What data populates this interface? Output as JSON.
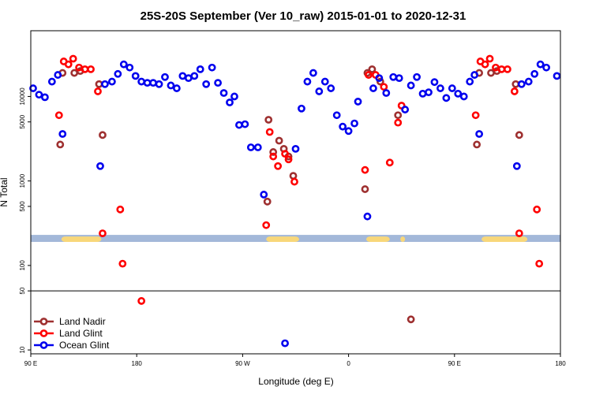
{
  "chart_data": {
    "type": "scatter",
    "title": "25S-20S September (Ver 10_raw)   2015-01-01 to 2020-12-31",
    "xlabel": "Longitude (deg E)",
    "ylabel": "N Total",
    "xlim": [
      90,
      540
    ],
    "ylim": [
      9,
      60000
    ],
    "yscale": "log",
    "grid": false,
    "legend_position": "bottom-left",
    "x_ticks": [
      {
        "value": 90,
        "label": "90 E"
      },
      {
        "value": 180,
        "label": "180"
      },
      {
        "value": 270,
        "label": "90 W"
      },
      {
        "value": 360,
        "label": "0"
      },
      {
        "value": 450,
        "label": "90 E"
      },
      {
        "value": 540,
        "label": "180"
      }
    ],
    "y_ticks": [
      {
        "value": 10,
        "label": "10"
      },
      {
        "value": 50,
        "label": "50"
      },
      {
        "value": 100,
        "label": "100"
      },
      {
        "value": 500,
        "label": "500"
      },
      {
        "value": 1000,
        "label": "1000"
      },
      {
        "value": 5000,
        "label": "5000"
      },
      {
        "value": 10000,
        "label": "10000"
      }
    ],
    "reference_line": 50,
    "map_strip": {
      "y_range": [
        190,
        230
      ],
      "land_spans": [
        [
          116,
          150
        ],
        [
          290,
          318
        ],
        [
          375,
          395
        ],
        [
          404,
          408
        ],
        [
          473,
          512
        ]
      ],
      "ocean_color": "#a3b8d9",
      "land_color": "#f8d77a"
    },
    "series": [
      {
        "name": "Land Nadir",
        "color": "#9e3030",
        "points": [
          {
            "x": 115,
            "y": 2700
          },
          {
            "x": 117,
            "y": 19000
          },
          {
            "x": 127,
            "y": 19000
          },
          {
            "x": 132,
            "y": 20000
          },
          {
            "x": 148,
            "y": 14000
          },
          {
            "x": 151,
            "y": 3500
          },
          {
            "x": 291,
            "y": 570
          },
          {
            "x": 292,
            "y": 5300
          },
          {
            "x": 296,
            "y": 2200
          },
          {
            "x": 301,
            "y": 3000
          },
          {
            "x": 305,
            "y": 2400
          },
          {
            "x": 309,
            "y": 1950
          },
          {
            "x": 313,
            "y": 1150
          },
          {
            "x": 374,
            "y": 800
          },
          {
            "x": 376,
            "y": 19000
          },
          {
            "x": 380,
            "y": 21000
          },
          {
            "x": 387,
            "y": 15000
          },
          {
            "x": 402,
            "y": 6000
          },
          {
            "x": 413,
            "y": 23
          },
          {
            "x": 469,
            "y": 2700
          },
          {
            "x": 471,
            "y": 19000
          },
          {
            "x": 481,
            "y": 19000
          },
          {
            "x": 486,
            "y": 20000
          },
          {
            "x": 502,
            "y": 14000
          },
          {
            "x": 505,
            "y": 3500
          }
        ]
      },
      {
        "name": "Land Glint",
        "color": "#ff0000",
        "points": [
          {
            "x": 114,
            "y": 6000
          },
          {
            "x": 118,
            "y": 26000
          },
          {
            "x": 122,
            "y": 24000
          },
          {
            "x": 126,
            "y": 28000
          },
          {
            "x": 131,
            "y": 22000
          },
          {
            "x": 136,
            "y": 21000
          },
          {
            "x": 141,
            "y": 21000
          },
          {
            "x": 147,
            "y": 11500
          },
          {
            "x": 151,
            "y": 240
          },
          {
            "x": 166,
            "y": 460
          },
          {
            "x": 168,
            "y": 105
          },
          {
            "x": 184,
            "y": 38
          },
          {
            "x": 290,
            "y": 300
          },
          {
            "x": 293,
            "y": 3800
          },
          {
            "x": 296,
            "y": 1950
          },
          {
            "x": 300,
            "y": 1500
          },
          {
            "x": 306,
            "y": 2100
          },
          {
            "x": 309,
            "y": 1800
          },
          {
            "x": 314,
            "y": 980
          },
          {
            "x": 374,
            "y": 1350
          },
          {
            "x": 377,
            "y": 18000
          },
          {
            "x": 383,
            "y": 18000
          },
          {
            "x": 390,
            "y": 13000
          },
          {
            "x": 395,
            "y": 1650
          },
          {
            "x": 402,
            "y": 4900
          },
          {
            "x": 405,
            "y": 7800
          },
          {
            "x": 468,
            "y": 6000
          },
          {
            "x": 472,
            "y": 26000
          },
          {
            "x": 476,
            "y": 24000
          },
          {
            "x": 480,
            "y": 28000
          },
          {
            "x": 485,
            "y": 22000
          },
          {
            "x": 490,
            "y": 21000
          },
          {
            "x": 495,
            "y": 21000
          },
          {
            "x": 501,
            "y": 11500
          },
          {
            "x": 505,
            "y": 240
          },
          {
            "x": 520,
            "y": 460
          },
          {
            "x": 522,
            "y": 105
          }
        ]
      },
      {
        "name": "Ocean Glint",
        "color": "#0000ee",
        "points": [
          {
            "x": 92,
            "y": 12500
          },
          {
            "x": 97,
            "y": 10500
          },
          {
            "x": 102,
            "y": 9800
          },
          {
            "x": 108,
            "y": 15000
          },
          {
            "x": 113,
            "y": 18000
          },
          {
            "x": 117,
            "y": 3600
          },
          {
            "x": 149,
            "y": 1500
          },
          {
            "x": 153,
            "y": 14000
          },
          {
            "x": 159,
            "y": 15000
          },
          {
            "x": 164,
            "y": 18500
          },
          {
            "x": 169,
            "y": 24000
          },
          {
            "x": 174,
            "y": 22000
          },
          {
            "x": 179,
            "y": 17500
          },
          {
            "x": 184,
            "y": 15000
          },
          {
            "x": 189,
            "y": 14500
          },
          {
            "x": 194,
            "y": 14500
          },
          {
            "x": 199,
            "y": 14000
          },
          {
            "x": 204,
            "y": 17000
          },
          {
            "x": 209,
            "y": 13500
          },
          {
            "x": 214,
            "y": 12500
          },
          {
            "x": 219,
            "y": 17500
          },
          {
            "x": 224,
            "y": 16500
          },
          {
            "x": 229,
            "y": 17500
          },
          {
            "x": 234,
            "y": 21000
          },
          {
            "x": 239,
            "y": 14000
          },
          {
            "x": 244,
            "y": 22000
          },
          {
            "x": 249,
            "y": 14500
          },
          {
            "x": 254,
            "y": 11000
          },
          {
            "x": 259,
            "y": 8500
          },
          {
            "x": 263,
            "y": 10000
          },
          {
            "x": 267,
            "y": 4600
          },
          {
            "x": 272,
            "y": 4700
          },
          {
            "x": 277,
            "y": 2500
          },
          {
            "x": 283,
            "y": 2500
          },
          {
            "x": 288,
            "y": 690
          },
          {
            "x": 306,
            "y": 12
          },
          {
            "x": 315,
            "y": 2400
          },
          {
            "x": 320,
            "y": 7200
          },
          {
            "x": 325,
            "y": 15000
          },
          {
            "x": 330,
            "y": 19000
          },
          {
            "x": 335,
            "y": 11500
          },
          {
            "x": 340,
            "y": 15000
          },
          {
            "x": 345,
            "y": 12500
          },
          {
            "x": 350,
            "y": 6000
          },
          {
            "x": 355,
            "y": 4400
          },
          {
            "x": 360,
            "y": 3900
          },
          {
            "x": 365,
            "y": 4800
          },
          {
            "x": 368,
            "y": 8700
          },
          {
            "x": 376,
            "y": 380
          },
          {
            "x": 381,
            "y": 12500
          },
          {
            "x": 386,
            "y": 16500
          },
          {
            "x": 392,
            "y": 11000
          },
          {
            "x": 398,
            "y": 17000
          },
          {
            "x": 403,
            "y": 16500
          },
          {
            "x": 408,
            "y": 7000
          },
          {
            "x": 413,
            "y": 13500
          },
          {
            "x": 418,
            "y": 17000
          },
          {
            "x": 423,
            "y": 10800
          },
          {
            "x": 428,
            "y": 11200
          },
          {
            "x": 433,
            "y": 14800
          },
          {
            "x": 438,
            "y": 12500
          },
          {
            "x": 443,
            "y": 9600
          },
          {
            "x": 448,
            "y": 12500
          },
          {
            "x": 453,
            "y": 10800
          },
          {
            "x": 458,
            "y": 10000
          },
          {
            "x": 463,
            "y": 15000
          },
          {
            "x": 467,
            "y": 18000
          },
          {
            "x": 471,
            "y": 3600
          },
          {
            "x": 503,
            "y": 1500
          },
          {
            "x": 507,
            "y": 14000
          },
          {
            "x": 513,
            "y": 15000
          },
          {
            "x": 518,
            "y": 18500
          },
          {
            "x": 523,
            "y": 24000
          },
          {
            "x": 528,
            "y": 22000
          },
          {
            "x": 537,
            "y": 17500
          }
        ]
      }
    ]
  }
}
